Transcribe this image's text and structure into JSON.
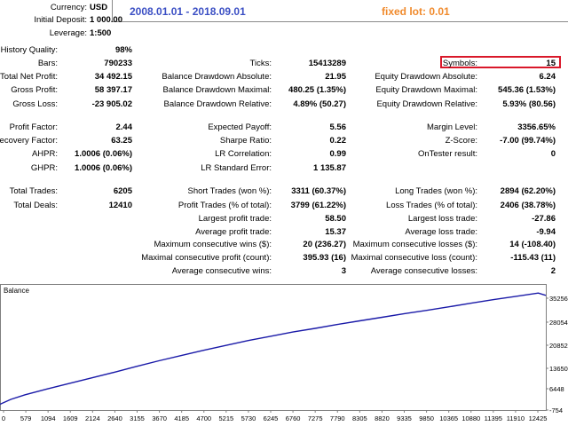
{
  "header": {
    "currency_label": "Currency:",
    "currency_value": "USD",
    "deposit_label": "Initial Deposit:",
    "deposit_value": "1 000.00",
    "leverage_label": "Leverage:",
    "leverage_value": "1:500",
    "period": "2008.01.01 - 2018.09.01",
    "lot": "fixed lot: 0.01"
  },
  "colors": {
    "period": "#3b4fc4",
    "lot": "#f08a2c",
    "highlight": "#d9182a",
    "balance_line": "#1a1aa8"
  },
  "col1": [
    {
      "label": "History Quality:",
      "value": "98%"
    },
    {
      "label": "Bars:",
      "value": "790233"
    },
    {
      "label": "Total Net Profit:",
      "value": "34 492.15"
    },
    {
      "label": "Gross Profit:",
      "value": "58 397.17"
    },
    {
      "label": "Gross Loss:",
      "value": "-23 905.02"
    },
    {
      "label": "Profit Factor:",
      "value": "2.44"
    },
    {
      "label": "Recovery Factor:",
      "value": "63.25"
    },
    {
      "label": "AHPR:",
      "value": "1.0006 (0.06%)"
    },
    {
      "label": "GHPR:",
      "value": "1.0006 (0.06%)"
    },
    {
      "label": "Total Trades:",
      "value": "6205"
    },
    {
      "label": "Total Deals:",
      "value": "12410"
    }
  ],
  "col2": [
    {
      "label": "Ticks:",
      "value": "15413289"
    },
    {
      "label": "Balance Drawdown Absolute:",
      "value": "21.95"
    },
    {
      "label": "Balance Drawdown Maximal:",
      "value": "480.25 (1.35%)"
    },
    {
      "label": "Balance Drawdown Relative:",
      "value": "4.89% (50.27)"
    },
    {
      "label": "Expected Payoff:",
      "value": "5.56"
    },
    {
      "label": "Sharpe Ratio:",
      "value": "0.22"
    },
    {
      "label": "LR Correlation:",
      "value": "0.99"
    },
    {
      "label": "LR Standard Error:",
      "value": "1 135.87"
    },
    {
      "label": "Short Trades (won %):",
      "value": "3311 (60.37%)"
    },
    {
      "label": "Profit Trades (% of total):",
      "value": "3799 (61.22%)"
    },
    {
      "label": "Largest profit trade:",
      "value": "58.50"
    },
    {
      "label": "Average profit trade:",
      "value": "15.37"
    },
    {
      "label": "Maximum consecutive wins ($):",
      "value": "20 (236.27)"
    },
    {
      "label": "Maximal consecutive profit (count):",
      "value": "395.93 (16)"
    },
    {
      "label": "Average consecutive wins:",
      "value": "3"
    }
  ],
  "col3": [
    {
      "label": "Symbols:",
      "value": "15"
    },
    {
      "label": "Equity Drawdown Absolute:",
      "value": "6.24"
    },
    {
      "label": "Equity Drawdown Maximal:",
      "value": "545.36 (1.53%)"
    },
    {
      "label": "Equity Drawdown Relative:",
      "value": "5.93% (80.56)"
    },
    {
      "label": "Margin Level:",
      "value": "3356.65%"
    },
    {
      "label": "Z-Score:",
      "value": "-7.00 (99.74%)"
    },
    {
      "label": "OnTester result:",
      "value": "0"
    },
    {
      "label": "Long Trades (won %):",
      "value": "2894 (62.20%)"
    },
    {
      "label": "Loss Trades (% of total):",
      "value": "2406 (38.78%)"
    },
    {
      "label": "Largest loss trade:",
      "value": "-27.86"
    },
    {
      "label": "Average loss trade:",
      "value": "-9.94"
    },
    {
      "label": "Maximum consecutive losses ($):",
      "value": "14 (-108.40)"
    },
    {
      "label": "Maximal consecutive loss (count):",
      "value": "-115.43 (11)"
    },
    {
      "label": "Average consecutive losses:",
      "value": "2"
    }
  ],
  "chart_data": {
    "type": "line",
    "title": "Balance",
    "x_ticks": [
      "0",
      "579",
      "1094",
      "1609",
      "2124",
      "2640",
      "3155",
      "3670",
      "4185",
      "4700",
      "5215",
      "5730",
      "6245",
      "6760",
      "7275",
      "7790",
      "8305",
      "8820",
      "9335",
      "9850",
      "10365",
      "10880",
      "11395",
      "11910",
      "12425"
    ],
    "y_ticks": [
      "35256",
      "28054",
      "20852",
      "13650",
      "6448",
      "-754"
    ],
    "xlim": [
      0,
      12600
    ],
    "ylim": [
      -754,
      37500
    ],
    "series": [
      {
        "name": "Balance",
        "x": [
          0,
          250,
          579,
          1094,
          1609,
          2124,
          2640,
          3155,
          3670,
          4185,
          4700,
          5215,
          5730,
          6245,
          6760,
          7275,
          7790,
          8305,
          8820,
          9335,
          9850,
          10365,
          10880,
          11395,
          11910,
          12425,
          12600
        ],
        "y": [
          1000,
          2500,
          3900,
          5700,
          7400,
          9100,
          10800,
          12600,
          14300,
          15900,
          17500,
          19000,
          20500,
          21800,
          23100,
          24200,
          25400,
          26500,
          27600,
          28700,
          29700,
          30800,
          31900,
          33000,
          34000,
          35000,
          34300
        ]
      }
    ]
  }
}
